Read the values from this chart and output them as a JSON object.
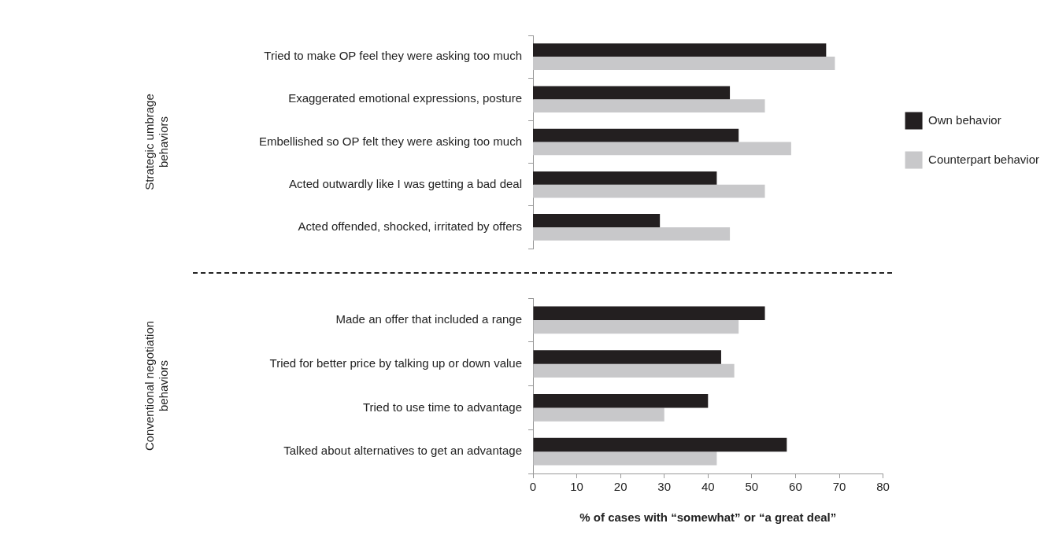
{
  "chart_data": [
    {
      "type": "bar",
      "orientation": "horizontal",
      "ylabel": "Strategic umbrage behaviors",
      "categories": [
        "Tried to make OP feel they were asking too much",
        "Exaggerated emotional expressions, posture",
        "Embellished so OP felt they were asking too much",
        "Acted outwardly like I was getting a bad deal",
        "Acted offended, shocked, irritated by offers"
      ],
      "series": [
        {
          "name": "Own behavior",
          "color": "#231f20",
          "values": [
            67,
            45,
            47,
            42,
            29
          ]
        },
        {
          "name": "Counterpart behavior",
          "color": "#c8c8ca",
          "values": [
            69,
            53,
            59,
            53,
            45
          ]
        }
      ],
      "xlim": [
        0,
        80
      ],
      "xticks": [
        0,
        10,
        20,
        30,
        40,
        50,
        60,
        70,
        80
      ],
      "tick_labels": "y",
      "grid": false,
      "legend": "right"
    },
    {
      "type": "bar",
      "orientation": "horizontal",
      "ylabel": "Conventional negotiation behaviors",
      "xlabel": "% of cases with “somewhat” or “a great deal”",
      "categories": [
        "Made an offer that included a range",
        "Tried for better price by talking up or down value",
        "Tried to use time to advantage",
        "Talked about alternatives to get an advantage"
      ],
      "series": [
        {
          "color": "#231f20",
          "values": [
            53,
            43,
            40,
            58
          ]
        },
        {
          "color": "#c8c8ca",
          "values": [
            47,
            46,
            30,
            42
          ]
        }
      ],
      "xlim": [
        0,
        80
      ],
      "xticks": [
        0,
        10,
        20,
        30,
        40,
        50,
        60,
        70,
        80
      ],
      "grid": false,
      "legend": false
    }
  ]
}
